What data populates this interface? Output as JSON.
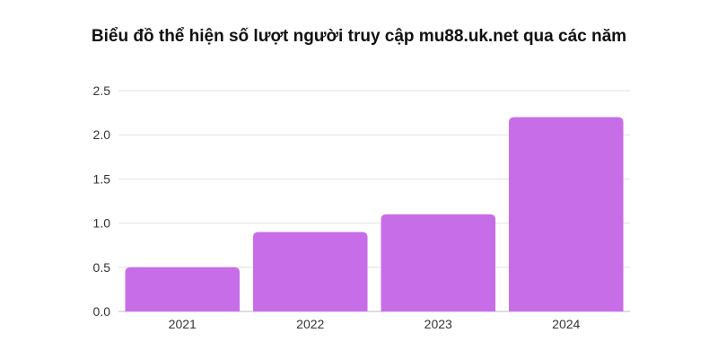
{
  "chart_data": {
    "type": "bar",
    "title": "Biểu đồ thể hiện số lượt người truy cập mu88.uk.net qua các năm",
    "categories": [
      "2021",
      "2022",
      "2023",
      "2024"
    ],
    "values": [
      0.5,
      0.9,
      1.1,
      2.2
    ],
    "xlabel": "",
    "ylabel": "",
    "ylim": [
      0,
      2.5
    ],
    "yticks": [
      "0.0",
      "0.5",
      "1.0",
      "1.5",
      "2.0",
      "2.5"
    ],
    "grid": true,
    "legend": "none",
    "colors": {
      "bar": "#c86de8",
      "grid": "#e3e3e3",
      "axis": "#bdbdbd"
    }
  }
}
